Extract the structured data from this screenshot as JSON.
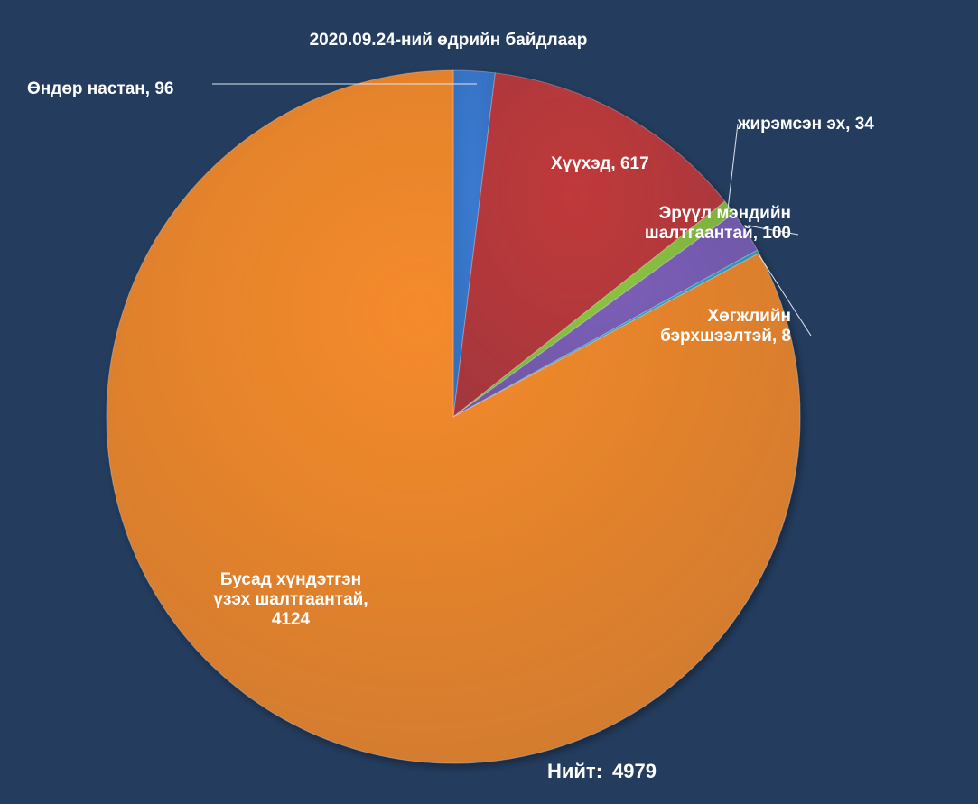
{
  "chart_data": {
    "type": "pie",
    "title": "2020.09.24-ний өдрийн байдлаар",
    "slices": [
      {
        "name": "Өндөр настан",
        "value": 96,
        "label": "Өндөр настан, 96",
        "color": "#3a7ad1"
      },
      {
        "name": "Хүүхэд",
        "value": 617,
        "label": "Хүүхэд, 617",
        "color": "#c0393a"
      },
      {
        "name": "жирэмсэн эх",
        "value": 34,
        "label": "жирэмсэн эх, 34",
        "color": "#8dc63f"
      },
      {
        "name": "Эрүүл мэндийн шалтгаантай",
        "value": 100,
        "label": "Эрүүл мэндийн\nшалтгаантай, 100",
        "color": "#7d5fb8"
      },
      {
        "name": "Хөгжлийн бэрхшээлтэй",
        "value": 8,
        "label": "Хөгжлийн\nбэрхшээлтэй, 8",
        "color": "#2fa6c8"
      },
      {
        "name": "Бусад хүндэтгэн үзэх шалтгаантай",
        "value": 4124,
        "label": "Бусад хүндэтгэн\nүзэх шалтгаантай,\n4124",
        "color": "#f58a2a"
      }
    ],
    "total_label": "Нийт:",
    "total_value": "4979"
  }
}
